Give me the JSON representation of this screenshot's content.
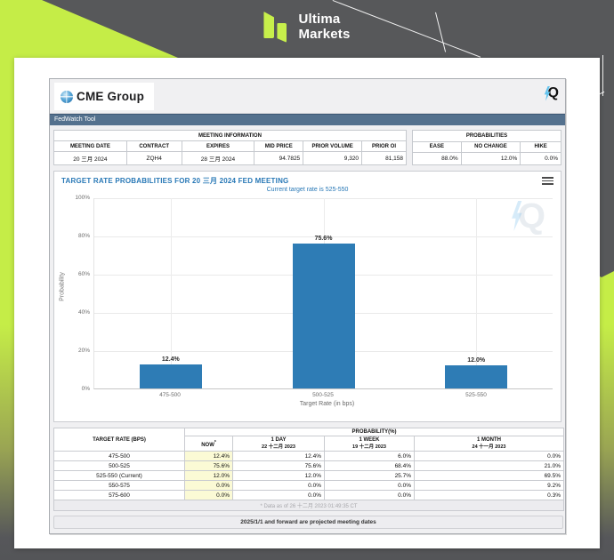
{
  "brand": {
    "line1": "Ultima",
    "line2": "Markets",
    "accent_color": "#c7ef4b",
    "band_color": "#57585a"
  },
  "cme": {
    "logo": "CME Group",
    "quik_logo": "Q",
    "toolbar": "FedWatch Tool",
    "toolbar_color": "#54718e"
  },
  "meeting_info": {
    "title": "MEETING INFORMATION",
    "headers": [
      "MEETING DATE",
      "CONTRACT",
      "EXPIRES",
      "MID PRICE",
      "PRIOR VOLUME",
      "PRIOR OI"
    ],
    "values": [
      "20 三月 2024",
      "ZQH4",
      "28 三月 2024",
      "94.7825",
      "9,320",
      "81,158"
    ]
  },
  "probabilities": {
    "title": "PROBABILITIES",
    "headers": [
      "EASE",
      "NO CHANGE",
      "HIKE"
    ],
    "values": [
      "88.0%",
      "12.0%",
      "0.0%"
    ]
  },
  "chart_data": {
    "type": "bar",
    "title": "TARGET RATE PROBABILITIES FOR 20 三月 2024 FED MEETING",
    "subtitle": "Current target rate is 525-550",
    "categories": [
      "475-500",
      "500-525",
      "525-550"
    ],
    "values": [
      12.4,
      75.6,
      12.0
    ],
    "labels": [
      "12.4%",
      "75.6%",
      "12.0%"
    ],
    "xlabel": "Target Rate (in bps)",
    "ylabel": "Probability",
    "ylim": [
      0,
      100
    ],
    "yticks": [
      "100%",
      "80%",
      "60%",
      "40%",
      "20%",
      "0%"
    ],
    "grid": true,
    "legend": "none",
    "bar_color": "#2e7cb5",
    "watermark": "Q"
  },
  "prob_table": {
    "col_rate": "TARGET RATE (BPS)",
    "col_group": "PROBABILITY(%)",
    "col_now": "NOW",
    "col_now_sup": "*",
    "cols": [
      {
        "l1": "1 DAY",
        "l2": "22 十二月 2023"
      },
      {
        "l1": "1 WEEK",
        "l2": "19 十二月 2023"
      },
      {
        "l1": "1 MONTH",
        "l2": "24 十一月 2023"
      }
    ],
    "rows": [
      {
        "rate": "475-500",
        "now": "12.4%",
        "day1": "12.4%",
        "week1": "6.0%",
        "month1": "0.0%"
      },
      {
        "rate": "500-525",
        "now": "75.6%",
        "day1": "75.6%",
        "week1": "68.4%",
        "month1": "21.0%"
      },
      {
        "rate": "525-550 (Current)",
        "now": "12.0%",
        "day1": "12.0%",
        "week1": "25.7%",
        "month1": "69.5%"
      },
      {
        "rate": "550-575",
        "now": "0.0%",
        "day1": "0.0%",
        "week1": "0.0%",
        "month1": "9.2%"
      },
      {
        "rate": "575-600",
        "now": "0.0%",
        "day1": "0.0%",
        "week1": "0.0%",
        "month1": "0.3%"
      }
    ],
    "footnote": "* Data as of 26 十二月 2023 01:49:35 CT",
    "note": "2025/1/1 and forward are projected meeting dates"
  }
}
